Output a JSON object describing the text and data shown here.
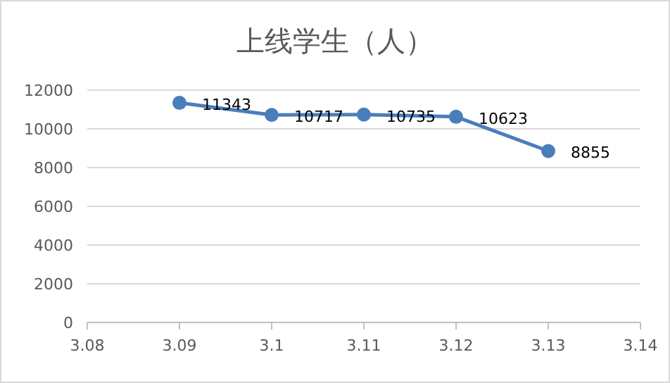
{
  "chart_data": {
    "type": "line",
    "title": "上线学生（人）",
    "x": [
      3.09,
      3.1,
      3.11,
      3.12,
      3.13
    ],
    "series": [
      {
        "color": "#4a7ebb",
        "values": [
          11343,
          10717,
          10735,
          10623,
          8855
        ]
      }
    ],
    "xlim": [
      3.08,
      3.14
    ],
    "xticks": [
      3.08,
      3.09,
      3.1,
      3.11,
      3.12,
      3.13,
      3.14
    ],
    "ylim": [
      0,
      12000
    ],
    "yticks": [
      0,
      2000,
      4000,
      6000,
      8000,
      10000,
      12000
    ],
    "grid": "y",
    "marker": "circle",
    "line_style": "solid",
    "data_labels": true
  }
}
